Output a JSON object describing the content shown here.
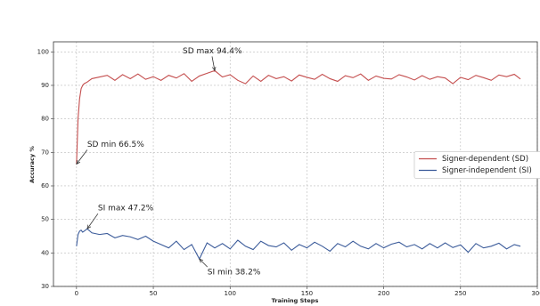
{
  "chart_data": {
    "type": "line",
    "xlabel": "Training Steps",
    "ylabel": "Accuracy %",
    "x": [
      0,
      1,
      2,
      3,
      4,
      5,
      7,
      10,
      15,
      20,
      25,
      30,
      35,
      40,
      45,
      50,
      55,
      60,
      65,
      70,
      75,
      80,
      85,
      90,
      95,
      100,
      105,
      110,
      115,
      120,
      125,
      130,
      135,
      140,
      145,
      150,
      155,
      160,
      165,
      170,
      175,
      180,
      185,
      190,
      195,
      200,
      205,
      210,
      215,
      220,
      225,
      230,
      235,
      240,
      245,
      250,
      255,
      260,
      265,
      270,
      275,
      280,
      285,
      289
    ],
    "series": [
      {
        "name": "Signer-dependent (SD)",
        "color": "#c44e4e",
        "values": [
          66.5,
          80,
          86,
          89,
          90,
          90.5,
          91,
          92,
          92.5,
          93,
          91.5,
          93.2,
          92,
          93.4,
          91.8,
          92.6,
          91.5,
          93,
          92.2,
          93.5,
          91.2,
          92.8,
          93.6,
          94.4,
          92.5,
          93.2,
          91.5,
          90.5,
          92.8,
          91.2,
          93,
          92,
          92.6,
          91.3,
          93.1,
          92.4,
          91.8,
          93.3,
          92,
          91.2,
          92.9,
          92.3,
          93.4,
          91.5,
          92.8,
          92.1,
          91.9,
          93.2,
          92.5,
          91.6,
          92.9,
          91.8,
          92.6,
          92.2,
          90.5,
          92.4,
          91.7,
          93,
          92.3,
          91.5,
          93.1,
          92.6,
          93.3,
          91.9
        ]
      },
      {
        "name": "Signer-independent (SI)",
        "color": "#3b5b9a",
        "values": [
          42,
          45.5,
          46.5,
          46.8,
          46.2,
          46.5,
          47.2,
          46,
          45.5,
          45.8,
          44.5,
          45.2,
          44.8,
          44,
          45,
          43.5,
          42.5,
          41.5,
          43.5,
          41,
          42.5,
          38.2,
          43,
          41.5,
          42.8,
          41.2,
          43.8,
          42,
          41,
          43.5,
          42.2,
          41.8,
          43,
          40.8,
          42.5,
          41.5,
          43.2,
          42,
          40.5,
          42.8,
          41.8,
          43.5,
          42,
          41.2,
          42.8,
          41.5,
          42.6,
          43.2,
          41.8,
          42.5,
          41.2,
          42.8,
          41.5,
          43,
          41.6,
          42.4,
          40.2,
          42.8,
          41.5,
          42,
          42.9,
          41.2,
          42.5,
          42
        ]
      }
    ],
    "annotations": [
      {
        "text": "SD max 94.4%",
        "x": 90,
        "y": 94.4
      },
      {
        "text": "SD min 66.5%",
        "x": 0,
        "y": 66.5
      },
      {
        "text": "SI max 47.2%",
        "x": 7,
        "y": 47.2
      },
      {
        "text": "SI min 38.2%",
        "x": 80,
        "y": 38.2
      }
    ],
    "xlim": [
      -15,
      300
    ],
    "ylim": [
      30,
      103
    ],
    "xticks": [
      0,
      50,
      100,
      150,
      200,
      250,
      300
    ],
    "yticks": [
      30,
      40,
      50,
      60,
      70,
      80,
      90,
      100
    ],
    "grid": true,
    "legend": "center right"
  }
}
